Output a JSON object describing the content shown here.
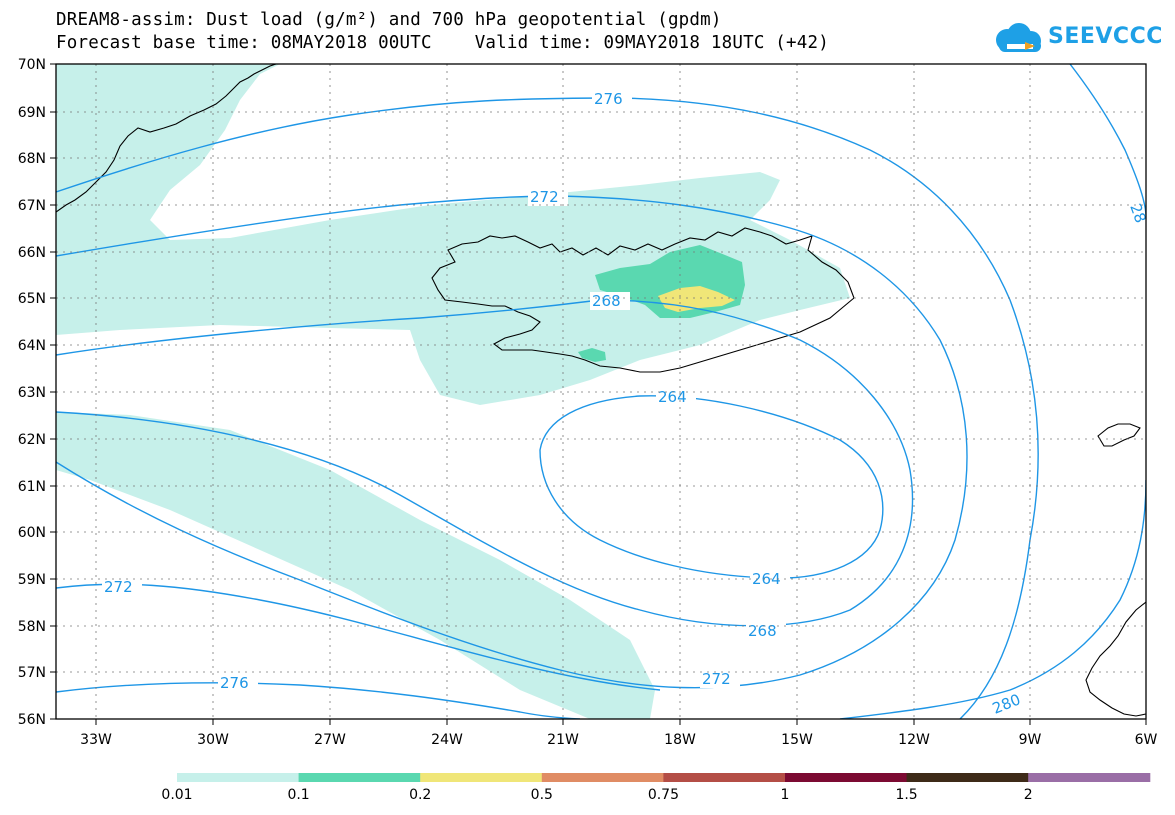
{
  "title_line1": "DREAM8-assim: Dust load (g/m²) and 700 hPa geopotential (gpdm)",
  "title_line2": "Forecast base time: 08MAY2018 00UTC    Valid time: 09MAY2018 18UTC (+42)",
  "logo_text": "SEEVCCC",
  "latitude_labels": [
    "56N",
    "57N",
    "58N",
    "59N",
    "60N",
    "61N",
    "62N",
    "63N",
    "64N",
    "65N",
    "66N",
    "67N",
    "68N",
    "69N",
    "70N"
  ],
  "longitude_labels": [
    "33W",
    "30W",
    "27W",
    "24W",
    "21W",
    "18W",
    "15W",
    "12W",
    "9W",
    "6W"
  ],
  "contour_labels": {
    "c276_top": "276",
    "c272_mid": "272",
    "c268": "268",
    "c264_top": "264",
    "c264_bottom": "264",
    "c268_bottom": "268",
    "c272_bottom": "272",
    "c272_left": "272",
    "c276_left": "276",
    "c280": "280",
    "c28_right": "28"
  },
  "colorbar": {
    "colors": [
      "#c6f0ea",
      "#5ad8b0",
      "#f0e678",
      "#e08c64",
      "#b44e46",
      "#7c0a32",
      "#3e2a18",
      "#9a6ea6"
    ],
    "labels": [
      "0.01",
      "0.1",
      "0.2",
      "0.5",
      "0.75",
      "1",
      "1.5",
      "2"
    ]
  },
  "colors": {
    "contour": "#1e96e6",
    "dust_low": "#c6f0ea",
    "dust_mid": "#5ad8b0",
    "dust_high": "#f0e678"
  }
}
